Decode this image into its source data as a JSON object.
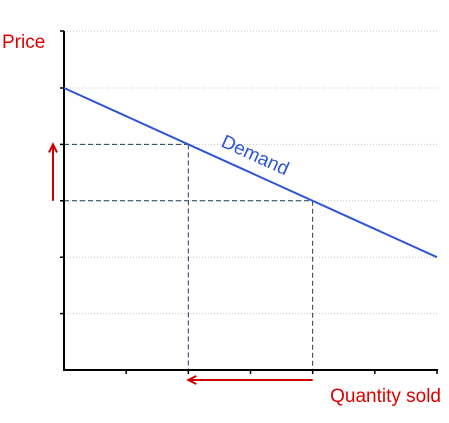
{
  "chart_data": {
    "type": "line",
    "xlabel": "Quantity sold",
    "ylabel": "Price",
    "curve_label": "Demand",
    "x_ticks": 6,
    "y_ticks": 6,
    "xlim": [
      0,
      6
    ],
    "ylim": [
      0,
      6
    ],
    "grid": "horizontal-dotted",
    "series": [
      {
        "name": "Demand",
        "points": [
          [
            0,
            5
          ],
          [
            6,
            2
          ]
        ]
      }
    ],
    "reference_points": [
      [
        2,
        4
      ],
      [
        4,
        3
      ]
    ],
    "annotations": [
      {
        "type": "arrow",
        "axis": "price",
        "direction": "up",
        "from": 3,
        "to": 4
      },
      {
        "type": "arrow",
        "axis": "quantity",
        "direction": "left",
        "from": 4,
        "to": 2
      }
    ]
  },
  "colors": {
    "demand": "#2f55d4",
    "axis": "#000000",
    "label": "#e00000",
    "arrow": "#d00000",
    "guide": "#1f3b57",
    "grid": "#c8c8c8"
  }
}
